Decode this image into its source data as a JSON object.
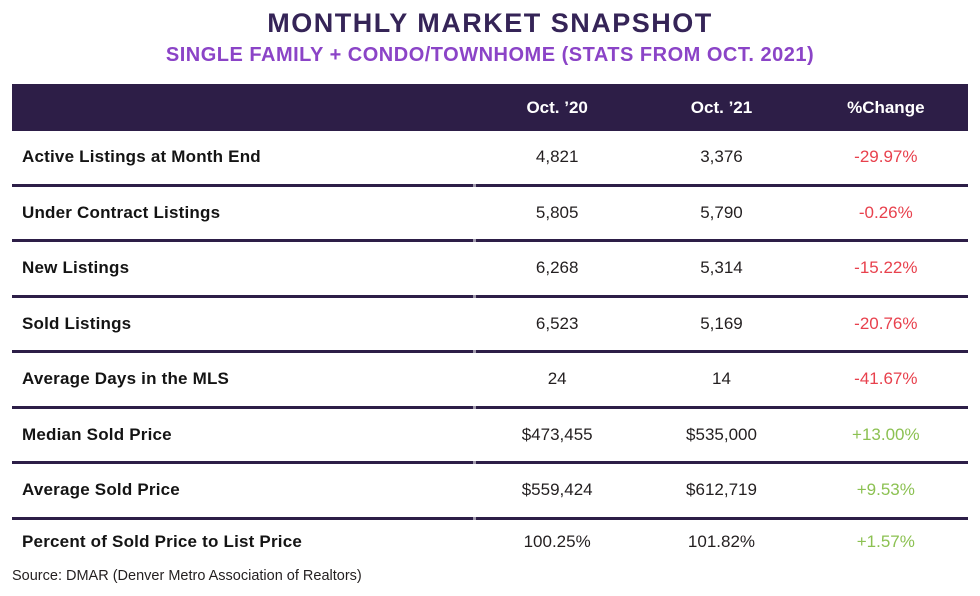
{
  "title": "MONTHLY MARKET SNAPSHOT",
  "subtitle": "SINGLE FAMILY + CONDO/TOWNHOME (STATS FROM OCT. 2021)",
  "source": "Source: DMAR (Denver Metro Association of Realtors)",
  "colors": {
    "title": "#352457",
    "subtitle": "#8b44c7",
    "header_background": "#2d1e47",
    "header_text": "#ffffff",
    "negative_change": "#e8414d",
    "positive_change": "#8cc152",
    "row_divider": "#2d1e47"
  },
  "chart_data": {
    "type": "table",
    "title": "MONTHLY MARKET SNAPSHOT",
    "subtitle": "SINGLE FAMILY + CONDO/TOWNHOME (STATS FROM OCT. 2021)",
    "columns": [
      "Oct. ’20",
      "Oct. ’21",
      "%Change"
    ],
    "rows": [
      {
        "label": "Active Listings at Month End",
        "oct20": "4,821",
        "oct21": "3,376",
        "change": "-29.97%"
      },
      {
        "label": "Under Contract Listings",
        "oct20": "5,805",
        "oct21": "5,790",
        "change": "-0.26%"
      },
      {
        "label": "New Listings",
        "oct20": "6,268",
        "oct21": "5,314",
        "change": "-15.22%"
      },
      {
        "label": "Sold Listings",
        "oct20": "6,523",
        "oct21": "5,169",
        "change": "-20.76%"
      },
      {
        "label": "Average Days in the MLS",
        "oct20": "24",
        "oct21": "14",
        "change": "-41.67%"
      },
      {
        "label": "Median Sold Price",
        "oct20": "$473,455",
        "oct21": "$535,000",
        "change": "+13.00%"
      },
      {
        "label": "Average Sold Price",
        "oct20": "$559,424",
        "oct21": "$612,719",
        "change": "+9.53%"
      },
      {
        "label": "Percent of Sold Price to List Price",
        "oct20": "100.25%",
        "oct21": "101.82%",
        "change": "+1.57%"
      }
    ],
    "source": "Source: DMAR (Denver Metro Association of Realtors)"
  }
}
